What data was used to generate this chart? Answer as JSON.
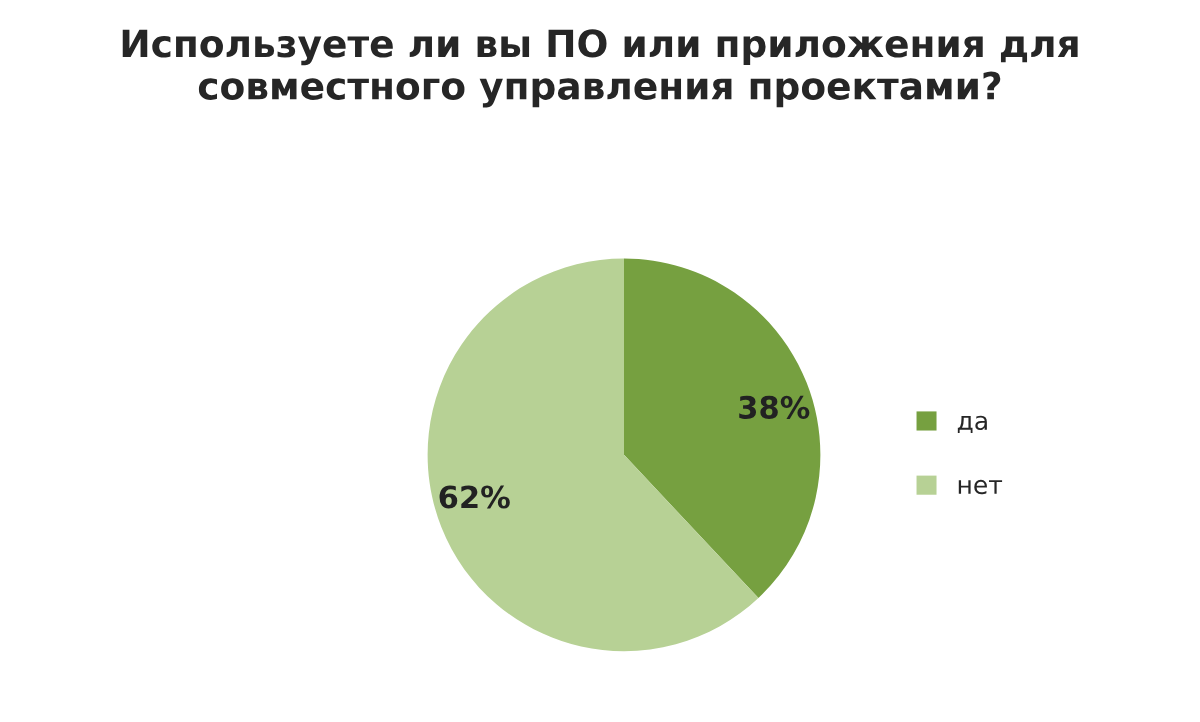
{
  "chart_data": {
    "type": "pie",
    "title": "Используете ли вы ПО или приложения для\nсовместного управления проектами?",
    "categories": [
      "да",
      "нет"
    ],
    "values": [
      38,
      62
    ],
    "colors": [
      "#76a040",
      "#b7d195"
    ],
    "value_labels": [
      "38%",
      "62%"
    ],
    "legend": "right"
  }
}
